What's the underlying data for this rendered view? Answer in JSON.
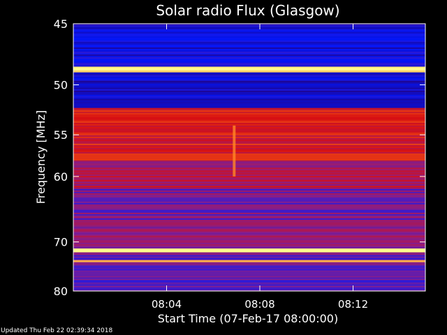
{
  "chart_data": {
    "type": "heatmap",
    "title": "Solar radio Flux (Glasgow)",
    "xlabel": "Start Time (07-Feb-17 08:00:00)",
    "ylabel": "Frequency [MHz]",
    "x_unit": "minutes after 08:00",
    "xlim": [
      0,
      15.1
    ],
    "ylim": [
      45,
      80
    ],
    "y_scale": "reciprocal",
    "x_ticks": [
      {
        "value": 4,
        "label": "08:04"
      },
      {
        "value": 8,
        "label": "08:08"
      },
      {
        "value": 12,
        "label": "08:12"
      }
    ],
    "y_ticks": [
      {
        "value": 45,
        "label": "45"
      },
      {
        "value": 50,
        "label": "50"
      },
      {
        "value": 55,
        "label": "55"
      },
      {
        "value": 60,
        "label": "60"
      },
      {
        "value": 70,
        "label": "70"
      },
      {
        "value": 80,
        "label": "80"
      }
    ],
    "colormap": [
      "#000000",
      "#2a0070",
      "#0018ff",
      "#8a1f8a",
      "#d81010",
      "#ff7a1a",
      "#ffff8c"
    ],
    "bands": [
      {
        "from": 45.0,
        "to": 48.4,
        "level": 0.3
      },
      {
        "from": 48.4,
        "to": 48.9,
        "level": 1.0
      },
      {
        "from": 48.9,
        "to": 52.2,
        "level": 0.28
      },
      {
        "from": 52.2,
        "to": 52.7,
        "level": 0.62
      },
      {
        "from": 52.7,
        "to": 58.0,
        "level": 0.66
      },
      {
        "from": 58.0,
        "to": 61.5,
        "level": 0.58
      },
      {
        "from": 61.5,
        "to": 67.5,
        "level": 0.48
      },
      {
        "from": 67.5,
        "to": 71.2,
        "level": 0.52
      },
      {
        "from": 71.2,
        "to": 71.9,
        "level": 1.0
      },
      {
        "from": 71.9,
        "to": 80.0,
        "level": 0.45
      }
    ],
    "hot_lines": [
      {
        "freq": 48.6,
        "level": 1.0
      },
      {
        "freq": 52.5,
        "level": 0.72
      },
      {
        "freq": 71.5,
        "level": 1.0
      },
      {
        "freq": 73.6,
        "level": 0.9
      }
    ],
    "features": [
      {
        "type": "burst",
        "x": 6.9,
        "freq_from": 54.0,
        "freq_to": 60.0,
        "level": 0.85
      }
    ]
  },
  "footer": "Updated Thu Feb 22 02:39:34 2018"
}
